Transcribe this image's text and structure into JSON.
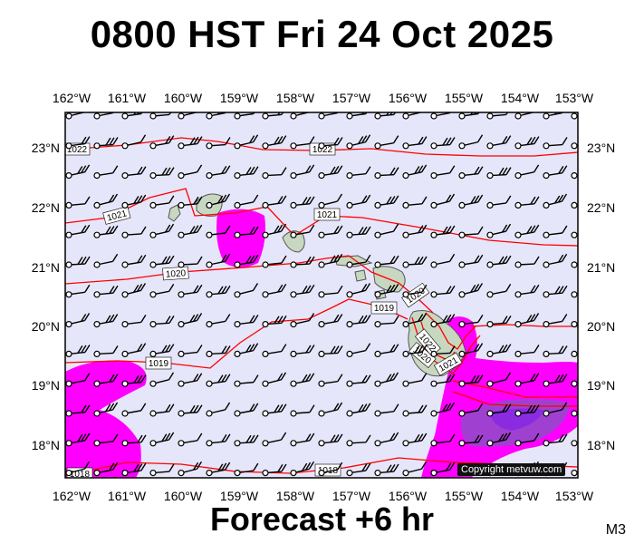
{
  "title": "0800 HST Fri 24 Oct 2025",
  "subtitle": "Forecast +6 hr",
  "model_code": "M3",
  "copyright": "Copyright metvuw.com",
  "lon_labels": [
    "162°W",
    "161°W",
    "160°W",
    "159°W",
    "158°W",
    "157°W",
    "156°W",
    "155°W",
    "154°W",
    "153°W"
  ],
  "lat_labels": [
    "23°N",
    "22°N",
    "21°N",
    "20°N",
    "19°N",
    "18°N"
  ],
  "isobar_labels": [
    "1022",
    "1022",
    "1021",
    "1021",
    "1020",
    "1020",
    "1020",
    "1019",
    "1019",
    "1021",
    "1022",
    "1018",
    "1018"
  ],
  "colors": {
    "ocean": "#e6e6fa",
    "isobar": "#ff0000",
    "rain_magenta": "#ff00ff",
    "rain_purple": "#9933cc",
    "land": "#c8d8c0",
    "land_edge": "#555555"
  },
  "icons": {
    "wind": "wind-barb-icon",
    "station": "station-circle-icon"
  }
}
